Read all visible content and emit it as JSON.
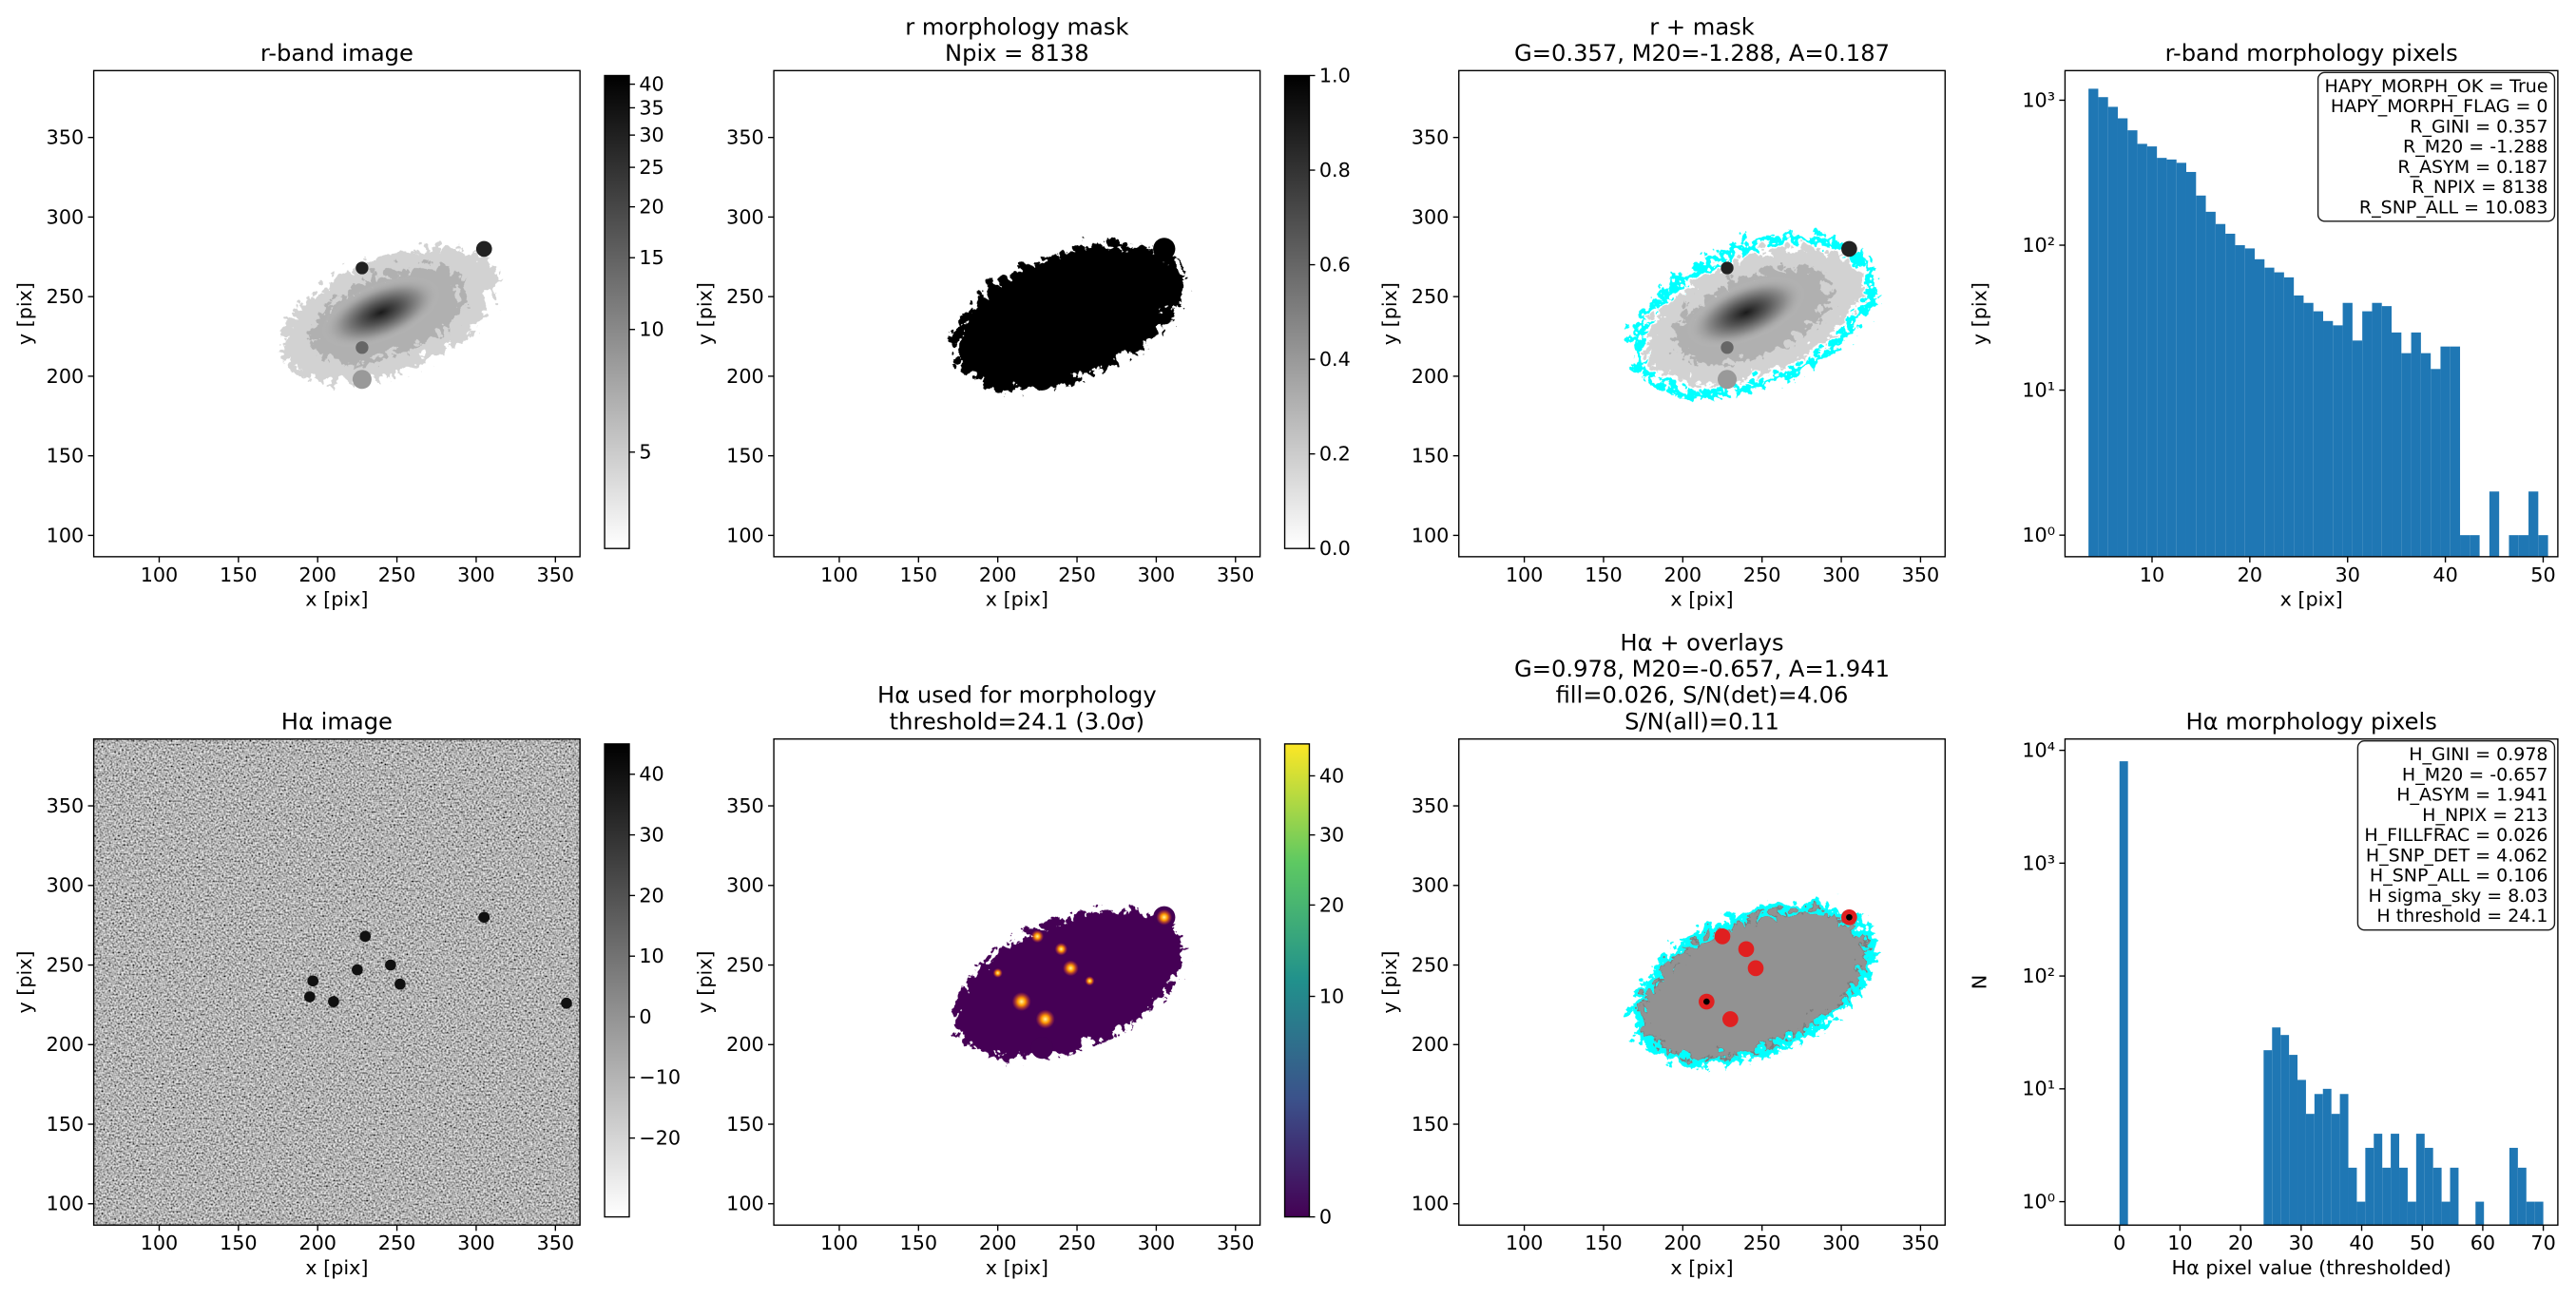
{
  "chart_data": [
    {
      "type": "image",
      "title": [
        "r-band image"
      ],
      "xlabel": "x [pix]",
      "ylabel": "y [pix]",
      "xlim": [
        58.7,
        365.5
      ],
      "ylim": [
        86.6,
        392
      ],
      "xticks": [
        100,
        150,
        200,
        250,
        300,
        350
      ],
      "yticks": [
        100,
        150,
        200,
        250,
        300,
        350
      ],
      "cmap": "gray_r",
      "colorbar": {
        "scale": "log",
        "lim": [
          2.9,
          42
        ],
        "ticks": [
          5,
          10,
          15,
          20,
          25,
          30,
          35,
          40
        ]
      }
    },
    {
      "type": "image",
      "title": [
        "r morphology mask",
        "Npix = 8138"
      ],
      "xlabel": "x [pix]",
      "ylabel": "y [pix]",
      "xlim": [
        58.7,
        365.5
      ],
      "ylim": [
        86.6,
        392
      ],
      "xticks": [
        100,
        150,
        200,
        250,
        300,
        350
      ],
      "yticks": [
        100,
        150,
        200,
        250,
        300,
        350
      ],
      "cmap": "gray_r",
      "colorbar": {
        "scale": "linear",
        "lim": [
          0,
          1
        ],
        "ticks": [
          {
            "value": 0,
            "label": "0.0"
          },
          0.2,
          0.4,
          0.6,
          0.8,
          {
            "value": 1,
            "label": "1.0"
          }
        ]
      }
    },
    {
      "type": "image",
      "title": [
        "r + mask",
        "G=0.357, M20=-1.288, A=0.187"
      ],
      "xlabel": "x [pix]",
      "ylabel": "y [pix]",
      "xlim": [
        58.7,
        365.5
      ],
      "ylim": [
        86.6,
        392
      ],
      "xticks": [
        100,
        150,
        200,
        250,
        300,
        350
      ],
      "yticks": [
        100,
        150,
        200,
        250,
        300,
        350
      ],
      "cmap": "gray_r",
      "overlay_color": "#00ffff"
    },
    {
      "type": "histogram",
      "title": [
        "r-band morphology pixels"
      ],
      "xlabel": "x [pix]",
      "ylabel": "y [pix]",
      "bins": [
        3.5,
        4.5,
        5.5,
        6.5,
        7.5,
        8.5,
        9.5,
        10.5,
        11.5,
        12.5,
        13.5,
        14.5,
        15.5,
        16.5,
        17.5,
        18.5,
        19.5,
        20.5,
        21.5,
        22.5,
        23.5,
        24.5,
        25.5,
        26.5,
        27.5,
        28.5,
        29.5,
        30.5,
        31.5,
        32.5,
        33.5,
        34.5,
        35.5,
        36.5,
        37.5,
        38.5,
        39.5,
        40.5,
        41.5,
        42.5,
        43.5,
        44.5,
        45.5,
        46.5,
        47.5,
        48.5,
        49.5,
        50.5
      ],
      "values": [
        1200,
        1050,
        900,
        750,
        620,
        500,
        480,
        400,
        390,
        370,
        320,
        220,
        170,
        140,
        120,
        100,
        95,
        80,
        70,
        65,
        60,
        45,
        40,
        35,
        30,
        28,
        40,
        22,
        35,
        40,
        38,
        25,
        18,
        25,
        18,
        14,
        20,
        20,
        1,
        1,
        0,
        2,
        0,
        1,
        1,
        2,
        1
      ],
      "color": "#1f77b4",
      "yscale": "log",
      "xlim": [
        1.1,
        51.5
      ],
      "ylim": [
        0.71,
        1600
      ],
      "xticks": [
        10,
        20,
        30,
        40,
        50
      ],
      "yticks": [
        {
          "value": 1,
          "label": "10⁰"
        },
        {
          "value": 10,
          "label": "10¹"
        },
        {
          "value": 100,
          "label": "10²"
        },
        {
          "value": 1000,
          "label": "10³"
        }
      ],
      "annotations": [
        "HAPY_MORPH_OK = True",
        "HAPY_MORPH_FLAG = 0",
        "R_GINI = 0.357",
        "R_M20 = -1.288",
        "R_ASYM = 0.187",
        "R_NPIX = 8138",
        "R_SNP_ALL = 10.083"
      ]
    },
    {
      "type": "image",
      "title": [
        "Hα image"
      ],
      "xlabel": "x [pix]",
      "ylabel": "y [pix]",
      "xlim": [
        58.7,
        365.5
      ],
      "ylim": [
        86.6,
        392
      ],
      "xticks": [
        100,
        150,
        200,
        250,
        300,
        350
      ],
      "yticks": [
        100,
        150,
        200,
        250,
        300,
        350
      ],
      "cmap": "gray_r",
      "colorbar": {
        "scale": "linear",
        "lim": [
          -33,
          45
        ],
        "ticks": [
          {
            "value": -20,
            "label": "−20"
          },
          {
            "value": -10,
            "label": "−10"
          },
          0,
          10,
          20,
          30,
          40
        ]
      }
    },
    {
      "type": "image",
      "title": [
        "Hα used for morphology",
        "threshold=24.1 (3.0σ)"
      ],
      "xlabel": "x [pix]",
      "ylabel": "y [pix]",
      "xlim": [
        58.7,
        365.5
      ],
      "ylim": [
        86.6,
        392
      ],
      "xticks": [
        100,
        150,
        200,
        250,
        300,
        350
      ],
      "yticks": [
        100,
        150,
        200,
        250,
        300,
        350
      ],
      "cmap": "viridis",
      "colorbar": {
        "scale": "sqrt",
        "lim": [
          0,
          46
        ],
        "ticks": [
          0,
          10,
          20,
          30,
          40
        ]
      }
    },
    {
      "type": "image",
      "title": [
        "Hα + overlays",
        "G=0.978, M20=-0.657, A=1.941",
        "fill=0.026, S/N(det)=4.06",
        "S/N(all)=0.11"
      ],
      "xlabel": "x [pix]",
      "ylabel": "y [pix]",
      "xlim": [
        58.7,
        365.5
      ],
      "ylim": [
        86.6,
        392
      ],
      "xticks": [
        100,
        150,
        200,
        250,
        300,
        350
      ],
      "yticks": [
        100,
        150,
        200,
        250,
        300,
        350
      ],
      "cmap": "gray_r",
      "overlay_color": "#00ffff"
    },
    {
      "type": "histogram",
      "title": [
        "Hα morphology pixels"
      ],
      "xlabel": "Hα pixel value (thresholded)",
      "ylabel": "N",
      "bins": [
        0,
        1.4,
        2.8,
        4.2,
        5.6,
        7,
        8.4,
        9.8,
        11.2,
        12.6,
        14,
        15.4,
        16.8,
        18.2,
        19.6,
        21,
        22.4,
        23.8,
        25.2,
        26.6,
        28,
        29.4,
        30.8,
        32.2,
        33.6,
        35,
        36.4,
        37.8,
        39.2,
        40.6,
        42,
        43.4,
        44.8,
        46.2,
        47.6,
        49,
        50.4,
        51.8,
        53.2,
        54.6,
        56,
        57.4,
        58.8,
        60.2,
        61.6,
        63,
        64.4,
        65.8,
        67.2,
        68.6,
        70
      ],
      "values": [
        8000,
        0,
        0,
        0,
        0,
        0,
        0,
        0,
        0,
        0,
        0,
        0,
        0,
        0,
        0,
        0,
        0,
        22,
        35,
        30,
        20,
        12,
        6,
        9,
        10,
        6,
        9,
        2,
        1,
        3,
        4,
        2,
        4,
        2,
        1,
        4,
        3,
        2,
        1,
        2,
        0,
        0,
        1,
        0,
        0,
        0,
        3,
        2,
        1,
        1
      ],
      "color": "#1f77b4",
      "yscale": "log",
      "xlim": [
        -9,
        72.4
      ],
      "ylim": [
        0.62,
        12600
      ],
      "xticks": [
        0,
        10,
        20,
        30,
        40,
        50,
        60,
        70
      ],
      "yticks": [
        {
          "value": 1,
          "label": "10⁰"
        },
        {
          "value": 10,
          "label": "10¹"
        },
        {
          "value": 100,
          "label": "10²"
        },
        {
          "value": 1000,
          "label": "10³"
        },
        {
          "value": 10000,
          "label": "10⁴"
        }
      ],
      "annotations": [
        "H_GINI = 0.978",
        "H_M20 = -0.657",
        "H_ASYM = 1.941",
        "H_NPIX = 213",
        "H_FILLFRAC = 0.026",
        "H_SNP_DET = 4.062",
        "H_SNP_ALL = 0.106",
        "H sigma_sky = 8.03",
        "H threshold = 24.1"
      ]
    }
  ]
}
